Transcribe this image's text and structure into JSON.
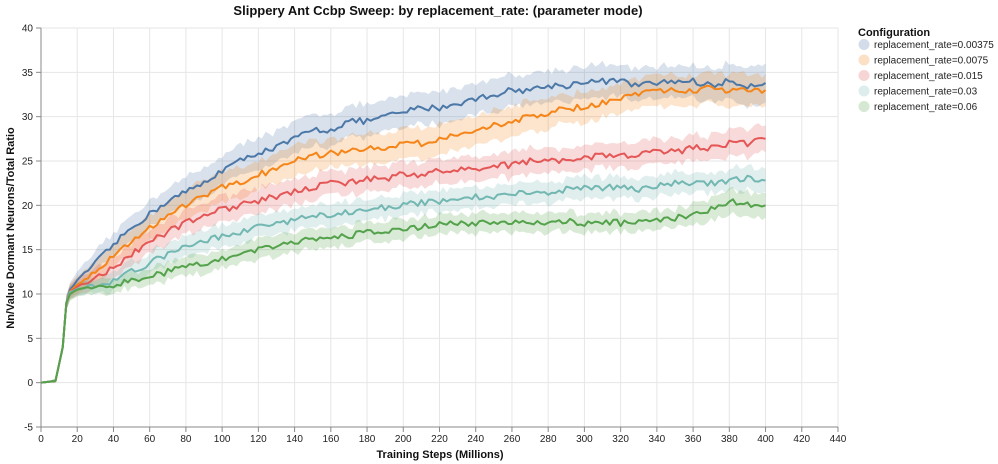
{
  "chart_data": {
    "type": "line",
    "title": "Slippery Ant Ccbp Sweep: by replacement_rate: (parameter mode)",
    "xlabel": "Training Steps (Millions)",
    "ylabel": "Nn/Value Dormant Neurons/Total Ratio",
    "xlim": [
      0,
      440
    ],
    "ylim": [
      -5,
      40
    ],
    "x_ticks": [
      0,
      20,
      40,
      60,
      80,
      100,
      120,
      140,
      160,
      180,
      200,
      220,
      240,
      260,
      280,
      300,
      320,
      340,
      360,
      380,
      400,
      420,
      440
    ],
    "y_ticks": [
      -5,
      0,
      5,
      10,
      15,
      20,
      25,
      30,
      35,
      40
    ],
    "grid": true,
    "legend": {
      "title": "Configuration",
      "position": "right"
    },
    "series": [
      {
        "name": "replacement_rate=0.00375",
        "color": "#4c78a8",
        "x": [
          0,
          8,
          12,
          14,
          16,
          20,
          30,
          40,
          50,
          60,
          70,
          80,
          90,
          100,
          110,
          120,
          130,
          140,
          150,
          160,
          170,
          180,
          190,
          200,
          210,
          220,
          230,
          240,
          250,
          260,
          270,
          280,
          290,
          300,
          310,
          320,
          330,
          340,
          350,
          360,
          370,
          380,
          390,
          400
        ],
        "y": [
          0,
          0.2,
          4,
          9,
          10.5,
          11.5,
          13.5,
          15.5,
          17.5,
          19,
          20.5,
          21.5,
          22.5,
          24,
          25,
          26,
          26.5,
          27.5,
          28.5,
          28.5,
          29.5,
          29.5,
          30,
          30.5,
          31,
          31,
          31.5,
          32,
          32.5,
          33,
          33,
          33.5,
          33.5,
          34,
          34,
          34,
          33.5,
          33.8,
          34,
          34,
          33.5,
          34,
          33.5,
          33.8
        ],
        "band_width": [
          0,
          0.2,
          0.6,
          0.8,
          0.8,
          1,
          1.2,
          1.3,
          1.4,
          1.5,
          1.6,
          1.6,
          1.7,
          1.7,
          1.7,
          1.8,
          1.8,
          1.8,
          1.8,
          1.8,
          1.8,
          1.8,
          1.8,
          1.8,
          1.8,
          1.8,
          1.8,
          1.8,
          1.8,
          1.8,
          1.8,
          1.8,
          1.8,
          1.8,
          1.8,
          1.8,
          1.8,
          1.8,
          1.8,
          1.8,
          1.8,
          2,
          2.2,
          2.2
        ]
      },
      {
        "name": "replacement_rate=0.0075",
        "color": "#f58518",
        "x": [
          0,
          8,
          12,
          14,
          16,
          20,
          30,
          40,
          50,
          60,
          70,
          80,
          90,
          100,
          110,
          120,
          130,
          140,
          150,
          160,
          170,
          180,
          190,
          200,
          210,
          220,
          230,
          240,
          250,
          260,
          270,
          280,
          290,
          300,
          310,
          320,
          330,
          340,
          350,
          360,
          370,
          380,
          390,
          400
        ],
        "y": [
          0,
          0.2,
          4,
          9,
          10.3,
          11,
          12.5,
          14.5,
          16,
          17.5,
          19,
          20,
          21,
          22,
          22.5,
          23.5,
          24,
          25,
          25.5,
          26,
          26,
          26.5,
          26.5,
          27,
          27,
          27.5,
          28,
          28.5,
          29,
          29.5,
          30,
          30.5,
          31,
          31,
          31.5,
          32,
          32.5,
          33,
          33,
          33,
          33.2,
          33,
          33.2,
          33
        ],
        "band_width": [
          0,
          0.2,
          0.6,
          0.8,
          0.8,
          1,
          1.2,
          1.3,
          1.4,
          1.5,
          1.6,
          1.6,
          1.7,
          1.7,
          1.7,
          1.7,
          1.7,
          1.7,
          1.7,
          1.7,
          1.7,
          1.7,
          1.7,
          1.7,
          1.7,
          1.7,
          1.7,
          1.7,
          1.7,
          1.7,
          1.7,
          1.7,
          1.7,
          1.7,
          1.7,
          1.7,
          1.7,
          1.7,
          1.7,
          1.7,
          1.7,
          1.8,
          1.8,
          1.8
        ]
      },
      {
        "name": "replacement_rate=0.015",
        "color": "#e45756",
        "x": [
          0,
          8,
          12,
          14,
          16,
          20,
          30,
          40,
          50,
          60,
          70,
          80,
          90,
          100,
          110,
          120,
          130,
          140,
          150,
          160,
          170,
          180,
          190,
          200,
          210,
          220,
          230,
          240,
          250,
          260,
          270,
          280,
          290,
          300,
          310,
          320,
          330,
          340,
          350,
          360,
          370,
          380,
          390,
          400
        ],
        "y": [
          0,
          0.2,
          4,
          9,
          10.2,
          10.8,
          11.8,
          13,
          14.5,
          15.8,
          17,
          18,
          19,
          19.5,
          20,
          20.5,
          21,
          21.5,
          22,
          22.5,
          22.5,
          23,
          23,
          23.5,
          23.5,
          24,
          24,
          24,
          24.5,
          24.5,
          25,
          25,
          25,
          25.5,
          25.5,
          25.5,
          25.8,
          26,
          26,
          26.5,
          26.5,
          27,
          27,
          27.5
        ],
        "band_width": [
          0,
          0.2,
          0.6,
          0.8,
          0.8,
          1,
          1.1,
          1.2,
          1.3,
          1.3,
          1.4,
          1.4,
          1.4,
          1.4,
          1.4,
          1.4,
          1.4,
          1.4,
          1.4,
          1.4,
          1.4,
          1.4,
          1.4,
          1.4,
          1.4,
          1.4,
          1.4,
          1.4,
          1.4,
          1.4,
          1.4,
          1.4,
          1.4,
          1.4,
          1.4,
          1.4,
          1.4,
          1.4,
          1.4,
          1.4,
          1.4,
          1.5,
          1.5,
          1.5
        ]
      },
      {
        "name": "replacement_rate=0.03",
        "color": "#72b7b2",
        "x": [
          0,
          8,
          12,
          14,
          16,
          20,
          30,
          40,
          50,
          60,
          70,
          80,
          90,
          100,
          110,
          120,
          130,
          140,
          150,
          160,
          170,
          180,
          190,
          200,
          210,
          220,
          230,
          240,
          250,
          260,
          270,
          280,
          290,
          300,
          310,
          320,
          330,
          340,
          350,
          360,
          370,
          380,
          390,
          400
        ],
        "y": [
          0,
          0.2,
          4,
          9,
          10.2,
          10.6,
          11,
          11.5,
          12.5,
          13.5,
          14.5,
          15.3,
          16,
          16.5,
          17,
          17.5,
          18,
          18.3,
          18.8,
          19,
          19.3,
          19.5,
          19.8,
          20,
          20.3,
          20.5,
          20.8,
          21,
          21,
          21.2,
          21.5,
          21.5,
          21.8,
          22,
          22,
          22,
          21.8,
          22.2,
          22.5,
          22.5,
          22.5,
          22.8,
          23,
          22.8
        ],
        "band_width": [
          0,
          0.2,
          0.6,
          0.8,
          0.8,
          0.8,
          0.9,
          1,
          1.1,
          1.2,
          1.2,
          1.2,
          1.2,
          1.2,
          1.2,
          1.2,
          1.2,
          1.2,
          1.2,
          1.2,
          1.2,
          1.2,
          1.2,
          1.2,
          1.2,
          1.2,
          1.2,
          1.2,
          1.2,
          1.2,
          1.2,
          1.2,
          1.2,
          1.2,
          1.2,
          1.2,
          1.2,
          1.2,
          1.2,
          1.2,
          1.2,
          1.3,
          1.3,
          1.3
        ]
      },
      {
        "name": "replacement_rate=0.06",
        "color": "#54a24b",
        "x": [
          0,
          8,
          12,
          14,
          16,
          20,
          30,
          40,
          50,
          60,
          70,
          80,
          90,
          100,
          110,
          120,
          130,
          140,
          150,
          160,
          170,
          180,
          190,
          200,
          210,
          220,
          230,
          240,
          250,
          260,
          270,
          280,
          290,
          300,
          310,
          320,
          330,
          340,
          350,
          360,
          370,
          380,
          390,
          400
        ],
        "y": [
          0,
          0.2,
          4,
          9,
          10,
          10.5,
          10.8,
          11,
          11.5,
          12,
          12.5,
          13,
          13.5,
          14,
          14.5,
          15,
          15.5,
          16,
          16,
          16.5,
          16.5,
          17,
          17,
          17.5,
          17.5,
          18,
          18,
          18,
          18,
          18.2,
          18,
          18,
          18.2,
          18,
          18.2,
          18,
          18,
          18.5,
          18.5,
          19,
          19.5,
          20.5,
          20,
          20
        ],
        "band_width": [
          0,
          0.2,
          0.6,
          0.8,
          0.8,
          0.8,
          0.8,
          0.8,
          0.9,
          1,
          1,
          1.1,
          1.1,
          1.1,
          1.1,
          1.1,
          1.1,
          1.1,
          1.1,
          1.1,
          1.1,
          1.1,
          1.1,
          1.1,
          1.1,
          1.1,
          1.1,
          1.1,
          1.1,
          1.1,
          1.1,
          1.1,
          1.1,
          1.1,
          1.1,
          1.1,
          1.1,
          1.1,
          1.1,
          1.2,
          1.3,
          1.4,
          1.4,
          1.4
        ]
      }
    ]
  }
}
